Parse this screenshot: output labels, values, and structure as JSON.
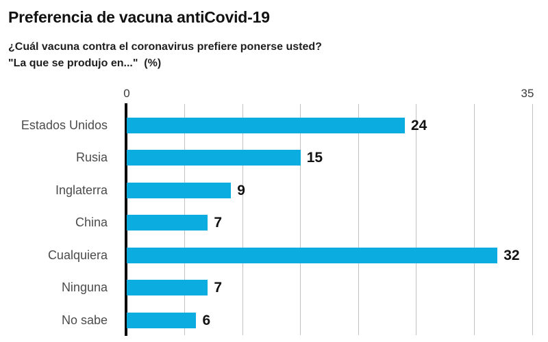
{
  "header": {
    "title": "Preferencia de vacuna antiCovid-19",
    "subtitle_lines": [
      "¿Cuál vacuna contra el coronavirus prefiere ponerse usted?",
      "\"La que se produjo en...\"  (%)"
    ]
  },
  "chart_data": {
    "type": "bar",
    "orientation": "horizontal",
    "title": "Preferencia de vacuna antiCovid-19",
    "subtitle": "¿Cuál vacuna contra el coronavirus prefiere ponerse usted? \"La que se produjo en...\" (%)",
    "categories": [
      "Estados Unidos",
      "Rusia",
      "Inglaterra",
      "China",
      "Cualquiera",
      "Ninguna",
      "No sabe"
    ],
    "values": [
      24,
      15,
      9,
      7,
      32,
      7,
      6
    ],
    "xlabel": "",
    "ylabel": "",
    "xlim": [
      0,
      35
    ],
    "x_ticks_shown": [
      "0",
      "35"
    ],
    "gridline_interval": 5,
    "grid": true,
    "legend": false,
    "colors": {
      "bar": "#0bace0",
      "axis": "#000000",
      "gridline": "#c1c1c1",
      "title": "#111111",
      "subtitle": "#1e1e1e",
      "category_label": "#4b4b4b",
      "value_label": "#121212",
      "tick_label": "#3a3a3a",
      "background": "#ffffff"
    }
  }
}
